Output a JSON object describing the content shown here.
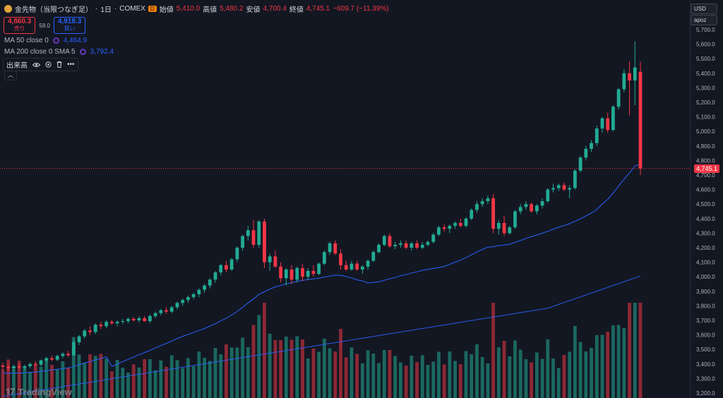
{
  "header": {
    "symbol_name": "金先物（当限つなぎ足）",
    "timeframe": "1日",
    "exchange": "COMEX",
    "source_badge": "D",
    "open_label": "始値",
    "open_value": "5,410.0",
    "high_label": "高値",
    "high_value": "5,480.2",
    "low_label": "安値",
    "low_value": "4,700.4",
    "close_label": "終値",
    "close_value": "4,745.1",
    "change": "−609.7 (−11.39%)"
  },
  "trade": {
    "sell_price": "4,860.3",
    "sell_label": "売り",
    "spread": "58.0",
    "buy_price": "4,918.3",
    "buy_label": "買い"
  },
  "indicators": {
    "ma50_label": "MA 50 close 0",
    "ma50_value": "4,464.9",
    "ma200_label": "MA 200 close 0 SMA 5",
    "ma200_value": "3,792.4",
    "volume_label": "出来高",
    "more_label": "•••"
  },
  "scale": {
    "currency": "USD",
    "unit": "apoz",
    "last_price": "4,745.1",
    "ticks": [
      "5,700.0",
      "5,600.0",
      "5,500.0",
      "5,400.0",
      "5,300.0",
      "5,200.0",
      "5,100.0",
      "5,000.0",
      "4,900.0",
      "4,800.0",
      "4,700.0",
      "4,600.0",
      "4,500.0",
      "4,400.0",
      "4,300.0",
      "4,200.0",
      "4,100.0",
      "4,000.0",
      "3,900.0",
      "3,800.0",
      "3,700.0",
      "3,600.0",
      "3,500.0",
      "3,400.0",
      "3,300.0",
      "3,200.0"
    ]
  },
  "logo": {
    "text": "TradingView"
  },
  "colors": {
    "up": "#22ab94",
    "down": "#f23645",
    "ma": "#2962ff",
    "bg": "#131722"
  },
  "chart_data": {
    "type": "candlestick",
    "y_range": [
      3200,
      5700
    ],
    "candles": [
      [
        3390,
        3410,
        3360,
        3380
      ],
      [
        3380,
        3400,
        3350,
        3370
      ],
      [
        3370,
        3395,
        3355,
        3385
      ],
      [
        3385,
        3400,
        3365,
        3375
      ],
      [
        3375,
        3395,
        3360,
        3385
      ],
      [
        3385,
        3410,
        3370,
        3400
      ],
      [
        3400,
        3420,
        3385,
        3395
      ],
      [
        3395,
        3430,
        3385,
        3425
      ],
      [
        3425,
        3450,
        3410,
        3440
      ],
      [
        3440,
        3460,
        3420,
        3430
      ],
      [
        3430,
        3465,
        3420,
        3455
      ],
      [
        3455,
        3480,
        3440,
        3470
      ],
      [
        3470,
        3490,
        3450,
        3460
      ],
      [
        3460,
        3560,
        3455,
        3550
      ],
      [
        3550,
        3600,
        3530,
        3590
      ],
      [
        3590,
        3640,
        3575,
        3630
      ],
      [
        3630,
        3660,
        3600,
        3620
      ],
      [
        3620,
        3680,
        3605,
        3670
      ],
      [
        3670,
        3690,
        3640,
        3660
      ],
      [
        3660,
        3700,
        3645,
        3690
      ],
      [
        3690,
        3705,
        3670,
        3680
      ],
      [
        3680,
        3700,
        3660,
        3690
      ],
      [
        3690,
        3710,
        3675,
        3695
      ],
      [
        3695,
        3720,
        3680,
        3710
      ],
      [
        3710,
        3725,
        3690,
        3700
      ],
      [
        3700,
        3730,
        3685,
        3715
      ],
      [
        3715,
        3730,
        3690,
        3695
      ],
      [
        3695,
        3740,
        3680,
        3730
      ],
      [
        3730,
        3760,
        3715,
        3750
      ],
      [
        3750,
        3780,
        3735,
        3770
      ],
      [
        3770,
        3790,
        3745,
        3760
      ],
      [
        3760,
        3800,
        3750,
        3790
      ],
      [
        3790,
        3830,
        3775,
        3820
      ],
      [
        3820,
        3850,
        3800,
        3840
      ],
      [
        3840,
        3870,
        3820,
        3860
      ],
      [
        3860,
        3890,
        3845,
        3880
      ],
      [
        3880,
        3920,
        3860,
        3910
      ],
      [
        3910,
        3950,
        3890,
        3940
      ],
      [
        3940,
        3990,
        3920,
        3980
      ],
      [
        3980,
        4040,
        3960,
        4030
      ],
      [
        4030,
        4090,
        4010,
        4080
      ],
      [
        4080,
        4110,
        4030,
        4050
      ],
      [
        4050,
        4130,
        4040,
        4120
      ],
      [
        4120,
        4210,
        4100,
        4200
      ],
      [
        4200,
        4290,
        4180,
        4280
      ],
      [
        4280,
        4350,
        4250,
        4320
      ],
      [
        4320,
        4390,
        4200,
        4220
      ],
      [
        4220,
        4390,
        4200,
        4380
      ],
      [
        4380,
        4400,
        4060,
        4100
      ],
      [
        4100,
        4160,
        4040,
        4140
      ],
      [
        4140,
        4180,
        4060,
        4070
      ],
      [
        4070,
        4100,
        3960,
        3990
      ],
      [
        3990,
        4060,
        3940,
        4050
      ],
      [
        4050,
        4080,
        3950,
        3980
      ],
      [
        3980,
        4070,
        3960,
        4060
      ],
      [
        4060,
        4090,
        3970,
        4000
      ],
      [
        4000,
        4060,
        3980,
        4040
      ],
      [
        4040,
        4080,
        4000,
        4020
      ],
      [
        4020,
        4100,
        4010,
        4090
      ],
      [
        4090,
        4180,
        4080,
        4170
      ],
      [
        4170,
        4240,
        4150,
        4230
      ],
      [
        4230,
        4250,
        4150,
        4160
      ],
      [
        4160,
        4190,
        4050,
        4080
      ],
      [
        4080,
        4110,
        4040,
        4050
      ],
      [
        4050,
        4110,
        4040,
        4090
      ],
      [
        4090,
        4110,
        4040,
        4050
      ],
      [
        4050,
        4080,
        4020,
        4070
      ],
      [
        4070,
        4120,
        4050,
        4110
      ],
      [
        4110,
        4180,
        4100,
        4170
      ],
      [
        4170,
        4230,
        4160,
        4220
      ],
      [
        4220,
        4290,
        4210,
        4280
      ],
      [
        4280,
        4300,
        4200,
        4210
      ],
      [
        4210,
        4240,
        4190,
        4220
      ],
      [
        4220,
        4250,
        4200,
        4230
      ],
      [
        4230,
        4250,
        4190,
        4200
      ],
      [
        4200,
        4240,
        4180,
        4230
      ],
      [
        4230,
        4250,
        4190,
        4200
      ],
      [
        4200,
        4240,
        4190,
        4220
      ],
      [
        4220,
        4250,
        4210,
        4240
      ],
      [
        4240,
        4300,
        4230,
        4290
      ],
      [
        4290,
        4350,
        4280,
        4340
      ],
      [
        4340,
        4360,
        4310,
        4330
      ],
      [
        4330,
        4360,
        4300,
        4350
      ],
      [
        4350,
        4380,
        4330,
        4370
      ],
      [
        4370,
        4400,
        4340,
        4350
      ],
      [
        4350,
        4410,
        4340,
        4400
      ],
      [
        4400,
        4470,
        4390,
        4460
      ],
      [
        4460,
        4520,
        4440,
        4500
      ],
      [
        4500,
        4540,
        4480,
        4520
      ],
      [
        4520,
        4560,
        4500,
        4540
      ],
      [
        4540,
        4570,
        4300,
        4330
      ],
      [
        4330,
        4390,
        4290,
        4370
      ],
      [
        4370,
        4420,
        4280,
        4300
      ],
      [
        4300,
        4350,
        4290,
        4340
      ],
      [
        4340,
        4460,
        4330,
        4450
      ],
      [
        4450,
        4500,
        4430,
        4480
      ],
      [
        4480,
        4520,
        4460,
        4500
      ],
      [
        4500,
        4510,
        4440,
        4450
      ],
      [
        4450,
        4500,
        4430,
        4490
      ],
      [
        4490,
        4540,
        4470,
        4520
      ],
      [
        4520,
        4610,
        4510,
        4600
      ],
      [
        4600,
        4640,
        4580,
        4610
      ],
      [
        4610,
        4640,
        4590,
        4630
      ],
      [
        4630,
        4650,
        4590,
        4600
      ],
      [
        4600,
        4630,
        4540,
        4610
      ],
      [
        4610,
        4740,
        4600,
        4730
      ],
      [
        4730,
        4830,
        4720,
        4820
      ],
      [
        4820,
        4900,
        4800,
        4880
      ],
      [
        4880,
        4940,
        4860,
        4920
      ],
      [
        4920,
        5040,
        4900,
        5020
      ],
      [
        5020,
        5100,
        4990,
        5090
      ],
      [
        5090,
        5130,
        4990,
        5010
      ],
      [
        5010,
        5180,
        5000,
        5170
      ],
      [
        5170,
        5300,
        5150,
        5290
      ],
      [
        5290,
        5430,
        5270,
        5400
      ],
      [
        5400,
        5480,
        5110,
        5350
      ],
      [
        5350,
        5620,
        5180,
        5440
      ],
      [
        5410,
        5480,
        4700,
        4745
      ]
    ],
    "volume_ticks": [
      "3,400.0",
      "3,300.0",
      "3,200.0"
    ]
  }
}
